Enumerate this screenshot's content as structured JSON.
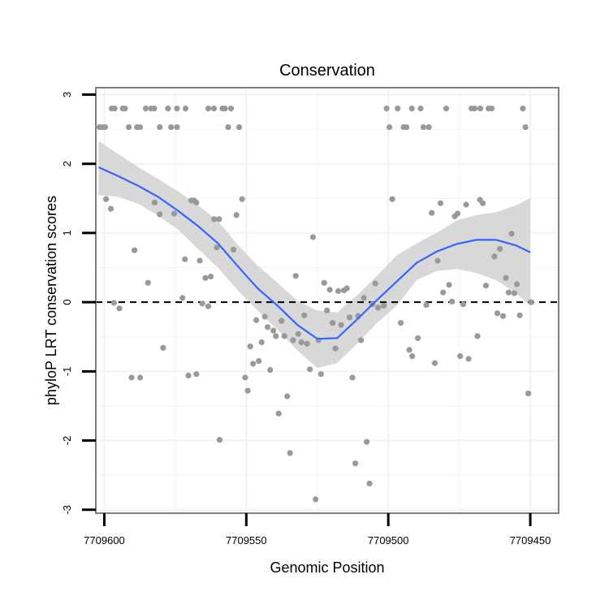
{
  "chart_data": {
    "type": "scatter",
    "title": "Conservation",
    "xlabel": "Genomic Position",
    "ylabel": "phyloP LRT conservation scores",
    "x_reversed": true,
    "xlim": [
      7709603,
      7709440
    ],
    "ylim": [
      -3.05,
      3.1
    ],
    "x_ticks": [
      7709600,
      7709550,
      7709500,
      7709450
    ],
    "y_ticks": [
      -3,
      -2,
      -1,
      0,
      1,
      2,
      3
    ],
    "grid": true,
    "reference_line": {
      "y": 0,
      "style": "dashed"
    },
    "colors": {
      "points": "#999999",
      "smooth_line": "#3366ff",
      "band": "#d4d4d4",
      "panel_border": "#7f7f7f",
      "grid": "#f2f2f2"
    },
    "points": [
      {
        "x": 7709601.7,
        "y": 2.53
      },
      {
        "x": 7709600.7,
        "y": 2.53
      },
      {
        "x": 7709599.7,
        "y": 2.53
      },
      {
        "x": 7709599.4,
        "y": 1.49
      },
      {
        "x": 7709597.4,
        "y": 2.8
      },
      {
        "x": 7709596.4,
        "y": 2.8
      },
      {
        "x": 7709597.7,
        "y": 1.35
      },
      {
        "x": 7709596.6,
        "y": -0.01
      },
      {
        "x": 7709594.7,
        "y": -0.09
      },
      {
        "x": 7709593.5,
        "y": 2.8
      },
      {
        "x": 7709592.7,
        "y": 2.8
      },
      {
        "x": 7709591.4,
        "y": 2.53
      },
      {
        "x": 7709590.4,
        "y": -1.09
      },
      {
        "x": 7709589.4,
        "y": 0.75
      },
      {
        "x": 7709588.5,
        "y": 2.53
      },
      {
        "x": 7709587.4,
        "y": -1.09
      },
      {
        "x": 7709587.4,
        "y": 2.53
      },
      {
        "x": 7709585.4,
        "y": 2.8
      },
      {
        "x": 7709584.6,
        "y": 0.28
      },
      {
        "x": 7709583.5,
        "y": 2.8
      },
      {
        "x": 7709582.4,
        "y": 2.8
      },
      {
        "x": 7709582.3,
        "y": 1.44
      },
      {
        "x": 7709580.5,
        "y": 1.27
      },
      {
        "x": 7709580.5,
        "y": 2.53
      },
      {
        "x": 7709579.3,
        "y": -0.66
      },
      {
        "x": 7709577.6,
        "y": 2.8
      },
      {
        "x": 7709576.5,
        "y": 2.53
      },
      {
        "x": 7709575.4,
        "y": 1.28
      },
      {
        "x": 7709574.4,
        "y": 2.53
      },
      {
        "x": 7709574.4,
        "y": 2.8
      },
      {
        "x": 7709572.5,
        "y": 0.06
      },
      {
        "x": 7709571.6,
        "y": 0.62
      },
      {
        "x": 7709571.4,
        "y": 2.8
      },
      {
        "x": 7709570.4,
        "y": -1.06
      },
      {
        "x": 7709569.4,
        "y": 1.47
      },
      {
        "x": 7709568.4,
        "y": 1.47
      },
      {
        "x": 7709567.6,
        "y": -1.04
      },
      {
        "x": 7709567.6,
        "y": 1.44
      },
      {
        "x": 7709566.4,
        "y": 0.6
      },
      {
        "x": 7709565.5,
        "y": -0.02
      },
      {
        "x": 7709564.4,
        "y": 0.35
      },
      {
        "x": 7709563.4,
        "y": -0.06
      },
      {
        "x": 7709563.4,
        "y": 2.8
      },
      {
        "x": 7709562.5,
        "y": 0.37
      },
      {
        "x": 7709561.4,
        "y": 2.8
      },
      {
        "x": 7709561.3,
        "y": 1.2
      },
      {
        "x": 7709560.4,
        "y": 0.79
      },
      {
        "x": 7709559.6,
        "y": 1.2
      },
      {
        "x": 7709559.4,
        "y": -1.99
      },
      {
        "x": 7709558.4,
        "y": 2.8
      },
      {
        "x": 7709557.5,
        "y": 2.8
      },
      {
        "x": 7709556.4,
        "y": 2.53
      },
      {
        "x": 7709555.4,
        "y": 2.8
      },
      {
        "x": 7709554.5,
        "y": 0.76
      },
      {
        "x": 7709553.5,
        "y": 1.26
      },
      {
        "x": 7709552.5,
        "y": 2.53
      },
      {
        "x": 7709551.5,
        "y": 1.49
      },
      {
        "x": 7709550.4,
        "y": -1.09
      },
      {
        "x": 7709549.5,
        "y": -1.28
      },
      {
        "x": 7709548.6,
        "y": -0.64
      },
      {
        "x": 7709547.6,
        "y": -0.89
      },
      {
        "x": 7709546.5,
        "y": -0.26
      },
      {
        "x": 7709545.6,
        "y": -0.85
      },
      {
        "x": 7709544.6,
        "y": -0.58
      },
      {
        "x": 7709543.5,
        "y": -0.21
      },
      {
        "x": 7709542.5,
        "y": -0.36
      },
      {
        "x": 7709541.6,
        "y": -0.98
      },
      {
        "x": 7709540.5,
        "y": -0.41
      },
      {
        "x": 7709539.6,
        "y": -0.49
      },
      {
        "x": 7709538.6,
        "y": -1.61
      },
      {
        "x": 7709537.6,
        "y": -0.27
      },
      {
        "x": 7709536.6,
        "y": -0.49
      },
      {
        "x": 7709535.6,
        "y": -1.36
      },
      {
        "x": 7709534.6,
        "y": -2.18
      },
      {
        "x": 7709533.5,
        "y": -0.55
      },
      {
        "x": 7709532.6,
        "y": 0.38
      },
      {
        "x": 7709531.7,
        "y": -0.46
      },
      {
        "x": 7709530.6,
        "y": -0.58
      },
      {
        "x": 7709529.6,
        "y": -0.19
      },
      {
        "x": 7709528.6,
        "y": -0.6
      },
      {
        "x": 7709527.6,
        "y": -0.97
      },
      {
        "x": 7709526.5,
        "y": 0.94
      },
      {
        "x": 7709525.6,
        "y": -2.85
      },
      {
        "x": 7709524.6,
        "y": -0.55
      },
      {
        "x": 7709523.7,
        "y": -1.04
      },
      {
        "x": 7709522.6,
        "y": 0.28
      },
      {
        "x": 7709521.6,
        "y": -0.12
      },
      {
        "x": 7709520.6,
        "y": 0.18
      },
      {
        "x": 7709519.6,
        "y": -0.3
      },
      {
        "x": 7709518.6,
        "y": -0.67
      },
      {
        "x": 7709517.6,
        "y": 0.16
      },
      {
        "x": 7709516.6,
        "y": -0.33
      },
      {
        "x": 7709515.6,
        "y": 0.17
      },
      {
        "x": 7709514.6,
        "y": 0.2
      },
      {
        "x": 7709513.6,
        "y": -0.22
      },
      {
        "x": 7709512.6,
        "y": -1.09
      },
      {
        "x": 7709511.6,
        "y": -2.33
      },
      {
        "x": 7709510.6,
        "y": -0.2
      },
      {
        "x": 7709509.6,
        "y": -0.55
      },
      {
        "x": 7709508.6,
        "y": 0.06
      },
      {
        "x": 7709507.6,
        "y": -2.02
      },
      {
        "x": 7709506.6,
        "y": -2.62
      },
      {
        "x": 7709505.6,
        "y": -0.03
      },
      {
        "x": 7709504.6,
        "y": 0.27
      },
      {
        "x": 7709503.6,
        "y": -0.08
      },
      {
        "x": 7709501.6,
        "y": -0.05
      },
      {
        "x": 7709500.6,
        "y": 2.8
      },
      {
        "x": 7709499.6,
        "y": 2.53
      },
      {
        "x": 7709498.6,
        "y": 1.49
      },
      {
        "x": 7709496.7,
        "y": 2.8
      },
      {
        "x": 7709495.6,
        "y": -0.3
      },
      {
        "x": 7709494.6,
        "y": 2.53
      },
      {
        "x": 7709493.6,
        "y": 2.53
      },
      {
        "x": 7709492.6,
        "y": -0.69
      },
      {
        "x": 7709491.6,
        "y": -0.78
      },
      {
        "x": 7709491.7,
        "y": 2.8
      },
      {
        "x": 7709489.6,
        "y": -0.52
      },
      {
        "x": 7709488.6,
        "y": 2.8
      },
      {
        "x": 7709487.6,
        "y": 2.53
      },
      {
        "x": 7709486.6,
        "y": -0.04
      },
      {
        "x": 7709485.7,
        "y": 2.53
      },
      {
        "x": 7709484.7,
        "y": 1.29
      },
      {
        "x": 7709483.6,
        "y": -0.88
      },
      {
        "x": 7709482.6,
        "y": 0.6
      },
      {
        "x": 7709481.6,
        "y": 1.43
      },
      {
        "x": 7709480.7,
        "y": 0.14
      },
      {
        "x": 7709479.6,
        "y": 2.8
      },
      {
        "x": 7709478.6,
        "y": 0.25
      },
      {
        "x": 7709477.6,
        "y": 0.01
      },
      {
        "x": 7709476.6,
        "y": 1.24
      },
      {
        "x": 7709475.6,
        "y": 1.28
      },
      {
        "x": 7709474.7,
        "y": -0.78
      },
      {
        "x": 7709473.6,
        "y": -0.03
      },
      {
        "x": 7709472.6,
        "y": 1.41
      },
      {
        "x": 7709471.7,
        "y": -0.82
      },
      {
        "x": 7709470.7,
        "y": 2.8
      },
      {
        "x": 7709469.6,
        "y": 2.8
      },
      {
        "x": 7709468.6,
        "y": -0.49
      },
      {
        "x": 7709467.6,
        "y": 2.8
      },
      {
        "x": 7709467.7,
        "y": 1.48
      },
      {
        "x": 7709466.7,
        "y": 1.43
      },
      {
        "x": 7709465.6,
        "y": 0.24
      },
      {
        "x": 7709464.7,
        "y": 2.8
      },
      {
        "x": 7709463.6,
        "y": 2.8
      },
      {
        "x": 7709462.6,
        "y": 0.66
      },
      {
        "x": 7709461.6,
        "y": -0.16
      },
      {
        "x": 7709460.7,
        "y": 0.77
      },
      {
        "x": 7709459.6,
        "y": -0.2
      },
      {
        "x": 7709458.6,
        "y": 0.35
      },
      {
        "x": 7709457.6,
        "y": 0.14
      },
      {
        "x": 7709456.6,
        "y": 0.99
      },
      {
        "x": 7709455.6,
        "y": 0.13
      },
      {
        "x": 7709454.7,
        "y": 0.26
      },
      {
        "x": 7709453.7,
        "y": -0.19
      },
      {
        "x": 7709452.6,
        "y": 2.8
      },
      {
        "x": 7709451.7,
        "y": 2.53
      },
      {
        "x": 7709450.7,
        "y": -1.32
      },
      {
        "x": 7709449.7,
        "y": 0.0
      }
    ],
    "smooth": {
      "x": [
        7709602,
        7709595,
        7709588,
        7709581,
        7709574,
        7709567,
        7709560,
        7709553,
        7709546,
        7709539,
        7709532,
        7709525,
        7709518,
        7709511,
        7709504,
        7709497,
        7709490,
        7709483,
        7709476,
        7709469,
        7709462,
        7709455,
        7709450
      ],
      "y": [
        1.95,
        1.82,
        1.68,
        1.52,
        1.32,
        1.1,
        0.85,
        0.52,
        0.2,
        -0.05,
        -0.33,
        -0.53,
        -0.52,
        -0.25,
        0.03,
        0.3,
        0.57,
        0.73,
        0.84,
        0.9,
        0.9,
        0.82,
        0.72
      ],
      "lower": [
        1.55,
        1.52,
        1.42,
        1.25,
        1.05,
        0.77,
        0.5,
        0.17,
        -0.12,
        -0.4,
        -0.7,
        -0.95,
        -0.88,
        -0.6,
        -0.3,
        -0.05,
        0.32,
        0.45,
        0.48,
        0.42,
        0.32,
        0.13,
        -0.05
      ],
      "upper": [
        2.33,
        2.14,
        1.95,
        1.78,
        1.6,
        1.4,
        1.17,
        0.83,
        0.53,
        0.28,
        0.02,
        -0.12,
        -0.15,
        0.1,
        0.38,
        0.68,
        0.85,
        1.0,
        1.18,
        1.26,
        1.3,
        1.4,
        1.5
      ]
    }
  }
}
